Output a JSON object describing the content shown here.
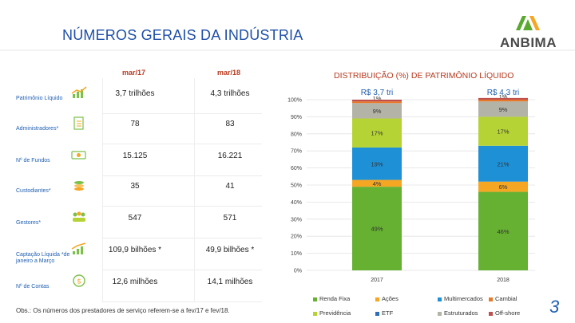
{
  "slide": {
    "title": "NÚMEROS GERAIS DA INDÚSTRIA",
    "logo_text": "ANBIMA",
    "page_number": "3",
    "footnote": "Obs.: Os números dos prestadores de serviço referem-se a fev/17 e fev/18."
  },
  "table": {
    "col1": "mar/17",
    "col2": "mar/18",
    "rows": [
      {
        "label": "Patrimônio Líquido",
        "icon": "chart-icon",
        "v1": "3,7 trilhões",
        "v2": "4,3 trilhões"
      },
      {
        "label": "Administradores*",
        "icon": "clipboard-icon",
        "v1": "78",
        "v2": "83"
      },
      {
        "label": "Nº de Fundos",
        "icon": "money-icon",
        "v1": "15.125",
        "v2": "16.221"
      },
      {
        "label": "Custodiantes*",
        "icon": "coins-icon",
        "v1": "35",
        "v2": "41"
      },
      {
        "label": "Gestores*",
        "icon": "people-icon",
        "v1": "547",
        "v2": "571"
      },
      {
        "label": "Captação Líquida *de janeiro a Março",
        "icon": "growth-icon",
        "v1": "109,9 bilhões *",
        "v2": "49,9 bilhões *"
      },
      {
        "label": "Nº de Contas",
        "icon": "dollar-coin-icon",
        "v1": "12,6 milhões",
        "v2": "14,1 milhões"
      }
    ]
  },
  "chart_data": {
    "type": "bar",
    "stacked": true,
    "title": "DISTRIBUIÇÃO (%) DE PATRIMÔNIO LÍQUIDO",
    "categories": [
      "2017",
      "2018"
    ],
    "totals": [
      "R$ 3,7 tri",
      "R$ 4,3 tri"
    ],
    "ylim": [
      0,
      100
    ],
    "yticks": [
      "0%",
      "10%",
      "20%",
      "30%",
      "40%",
      "50%",
      "60%",
      "70%",
      "80%",
      "90%",
      "100%"
    ],
    "series": [
      {
        "name": "Renda Fixa",
        "color": "#66b032",
        "values": [
          49,
          46
        ],
        "labels": [
          "49%",
          "46%"
        ]
      },
      {
        "name": "Ações",
        "color": "#f5a623",
        "values": [
          4,
          6
        ],
        "labels": [
          "4%",
          "6%"
        ]
      },
      {
        "name": "Multimercados",
        "color": "#1e90d6",
        "values": [
          19,
          21
        ],
        "labels": [
          "19%",
          "21%"
        ]
      },
      {
        "name": "Previdência",
        "color": "#b5d334",
        "values": [
          17,
          17
        ],
        "labels": [
          "17%",
          "17%"
        ]
      },
      {
        "name": "Estruturados",
        "color": "#b3b3a7",
        "values": [
          9,
          9
        ],
        "labels": [
          "9%",
          "9%"
        ]
      },
      {
        "name": "ETF",
        "color": "#2e6fb3",
        "values": [
          0,
          0
        ],
        "labels": [
          "",
          ""
        ]
      },
      {
        "name": "Cambial",
        "color": "#e8792b",
        "values": [
          1,
          1
        ],
        "labels": [
          "1%",
          "1%"
        ]
      },
      {
        "name": "Off-shore",
        "color": "#c0504d",
        "values": [
          1,
          1
        ],
        "labels": [
          "",
          ""
        ]
      }
    ],
    "legend": [
      {
        "name": "Renda Fixa",
        "color": "#66b032"
      },
      {
        "name": "Ações",
        "color": "#f5a623"
      },
      {
        "name": "Multimercados",
        "color": "#1e90d6"
      },
      {
        "name": "Cambial",
        "color": "#e8792b"
      },
      {
        "name": "Previdência",
        "color": "#b5d334"
      },
      {
        "name": "ETF",
        "color": "#2e6fb3"
      },
      {
        "name": "Estruturados",
        "color": "#b3b3a7"
      },
      {
        "name": "Off-shore",
        "color": "#c0504d"
      }
    ]
  }
}
